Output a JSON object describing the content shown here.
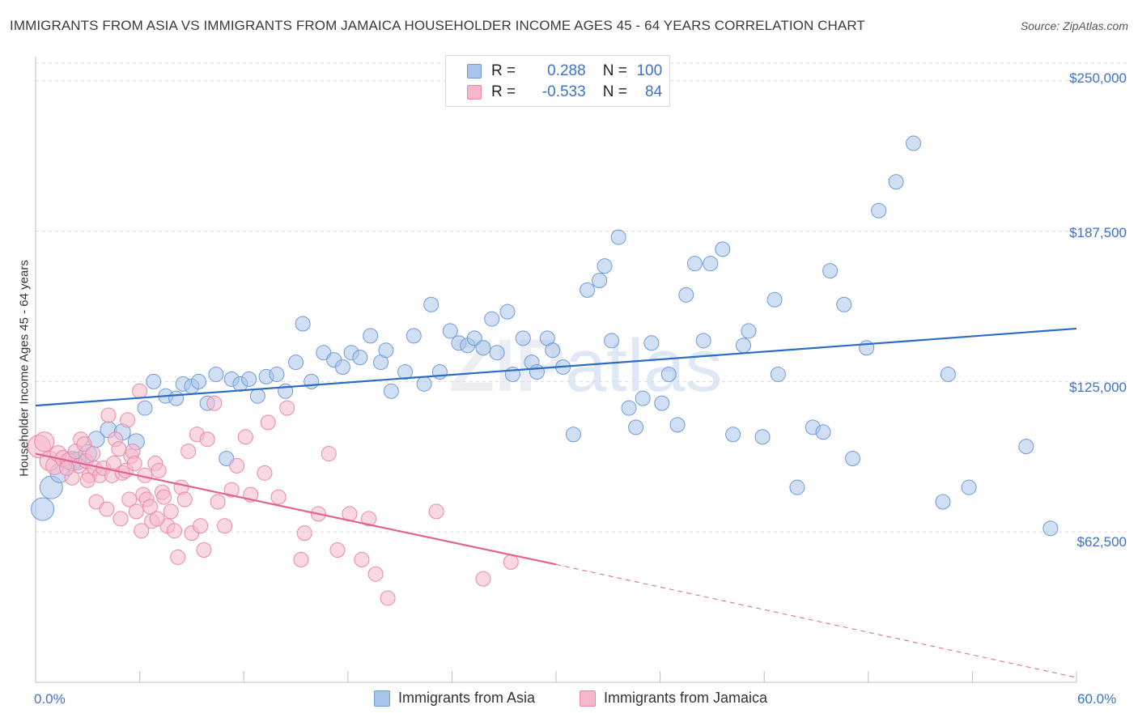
{
  "title": "IMMIGRANTS FROM ASIA VS IMMIGRANTS FROM JAMAICA HOUSEHOLDER INCOME AGES 45 - 64 YEARS CORRELATION CHART",
  "source": "Source: ZipAtlas.com",
  "watermark": {
    "zip": "ZIP",
    "atlas": "atlas"
  },
  "legend": {
    "rows": [
      {
        "r_label": "R =",
        "r_value": "0.288",
        "n_label": "N =",
        "n_value": "100"
      },
      {
        "r_label": "R =",
        "r_value": "-0.533",
        "n_label": "N =",
        "n_value": "84"
      }
    ]
  },
  "colors": {
    "asia_fill": "#a9c4ea",
    "asia_stroke": "#6f9bd8",
    "asia_line": "#2b6cc4",
    "jamaica_fill": "#f5b8cb",
    "jamaica_stroke": "#e889a8",
    "jamaica_line": "#e2638f",
    "tick_text": "#3d73c6",
    "grid": "#dcdcdc"
  },
  "chart_data": {
    "type": "scatter",
    "title": "IMMIGRANTS FROM ASIA VS IMMIGRANTS FROM JAMAICA HOUSEHOLDER INCOME AGES 45 - 64 YEARS CORRELATION CHART",
    "xlabel": "",
    "ylabel": "Householder Income Ages 45 - 64 years",
    "xlim": [
      0,
      60
    ],
    "ylim": [
      0,
      260000
    ],
    "x_tick_labels": [
      "0.0%",
      "60.0%"
    ],
    "y_ticks": [
      62500,
      125000,
      187500,
      250000
    ],
    "y_tick_labels": [
      "$62,500",
      "$125,000",
      "$187,500",
      "$250,000"
    ],
    "grid": true,
    "legend_position": "top-center",
    "series": [
      {
        "name": "Immigrants from Asia",
        "trendline": {
          "x": [
            0,
            60
          ],
          "y": [
            115000,
            147000
          ],
          "dashed_extension": false
        },
        "points": [
          [
            0.4,
            72000,
            14
          ],
          [
            0.9,
            81000,
            14
          ],
          [
            1.4,
            87000,
            12
          ],
          [
            2.1,
            92000,
            12
          ],
          [
            2.4,
            92000,
            11
          ],
          [
            3.0,
            95000,
            11
          ],
          [
            3.5,
            101000,
            10
          ],
          [
            4.2,
            105000,
            10
          ],
          [
            5.0,
            104000,
            10
          ],
          [
            5.8,
            100000,
            10
          ],
          [
            6.3,
            114000,
            9
          ],
          [
            6.8,
            125000,
            9
          ],
          [
            7.5,
            119000,
            9
          ],
          [
            8.1,
            118000,
            9
          ],
          [
            8.5,
            124000,
            9
          ],
          [
            9.0,
            123000,
            9
          ],
          [
            9.4,
            125000,
            9
          ],
          [
            9.9,
            116000,
            9
          ],
          [
            10.4,
            128000,
            9
          ],
          [
            11.0,
            93000,
            9
          ],
          [
            11.3,
            126000,
            9
          ],
          [
            11.8,
            124000,
            9
          ],
          [
            12.3,
            126000,
            9
          ],
          [
            12.8,
            119000,
            9
          ],
          [
            13.3,
            127000,
            9
          ],
          [
            13.9,
            128000,
            9
          ],
          [
            14.4,
            121000,
            9
          ],
          [
            15.0,
            133000,
            9
          ],
          [
            15.4,
            149000,
            9
          ],
          [
            15.9,
            125000,
            9
          ],
          [
            16.6,
            137000,
            9
          ],
          [
            17.2,
            134000,
            9
          ],
          [
            17.7,
            131000,
            9
          ],
          [
            18.2,
            137000,
            9
          ],
          [
            18.7,
            135000,
            9
          ],
          [
            19.3,
            144000,
            9
          ],
          [
            19.9,
            133000,
            9
          ],
          [
            20.2,
            138000,
            9
          ],
          [
            20.5,
            121000,
            9
          ],
          [
            21.3,
            129000,
            9
          ],
          [
            21.8,
            144000,
            9
          ],
          [
            22.4,
            124000,
            9
          ],
          [
            22.8,
            157000,
            9
          ],
          [
            23.3,
            129000,
            9
          ],
          [
            23.9,
            146000,
            9
          ],
          [
            24.4,
            141000,
            9
          ],
          [
            24.9,
            140000,
            9
          ],
          [
            25.3,
            143000,
            9
          ],
          [
            25.8,
            139000,
            9
          ],
          [
            26.3,
            151000,
            9
          ],
          [
            26.6,
            137000,
            9
          ],
          [
            27.2,
            154000,
            9
          ],
          [
            27.5,
            128000,
            9
          ],
          [
            28.1,
            143000,
            9
          ],
          [
            28.6,
            133000,
            9
          ],
          [
            28.9,
            129000,
            9
          ],
          [
            29.5,
            143000,
            9
          ],
          [
            29.8,
            138000,
            9
          ],
          [
            30.4,
            131000,
            9
          ],
          [
            31.0,
            103000,
            9
          ],
          [
            31.8,
            163000,
            9
          ],
          [
            32.5,
            167000,
            9
          ],
          [
            32.8,
            173000,
            9
          ],
          [
            33.2,
            142000,
            9
          ],
          [
            33.6,
            185000,
            9
          ],
          [
            34.2,
            114000,
            9
          ],
          [
            34.6,
            106000,
            9
          ],
          [
            35.0,
            118000,
            9
          ],
          [
            35.5,
            141000,
            9
          ],
          [
            36.1,
            116000,
            9
          ],
          [
            36.5,
            128000,
            9
          ],
          [
            37.0,
            107000,
            9
          ],
          [
            37.5,
            161000,
            9
          ],
          [
            38.0,
            174000,
            9
          ],
          [
            38.5,
            142000,
            9
          ],
          [
            38.9,
            174000,
            9
          ],
          [
            39.6,
            180000,
            9
          ],
          [
            40.2,
            103000,
            9
          ],
          [
            40.8,
            140000,
            9
          ],
          [
            41.1,
            146000,
            9
          ],
          [
            41.9,
            102000,
            9
          ],
          [
            42.6,
            159000,
            9
          ],
          [
            42.8,
            128000,
            9
          ],
          [
            43.9,
            81000,
            9
          ],
          [
            44.8,
            106000,
            9
          ],
          [
            45.4,
            104000,
            9
          ],
          [
            45.8,
            171000,
            9
          ],
          [
            46.6,
            157000,
            9
          ],
          [
            47.1,
            93000,
            9
          ],
          [
            47.9,
            139000,
            9
          ],
          [
            48.6,
            196000,
            9
          ],
          [
            49.6,
            208000,
            9
          ],
          [
            50.6,
            224000,
            9
          ],
          [
            52.3,
            75000,
            9
          ],
          [
            52.6,
            128000,
            9
          ],
          [
            53.8,
            81000,
            9
          ],
          [
            57.1,
            98000,
            9
          ],
          [
            58.5,
            64000,
            9
          ]
        ]
      },
      {
        "name": "Immigrants from Jamaica",
        "trendline": {
          "x": [
            0,
            30
          ],
          "y": [
            95000,
            49000
          ],
          "dashed_extension": {
            "x": [
              30,
              60
            ],
            "y": [
              49000,
              2000
            ]
          }
        },
        "points": [
          [
            0.2,
            98000,
            14
          ],
          [
            0.5,
            100000,
            12
          ],
          [
            0.8,
            92000,
            12
          ],
          [
            1.1,
            90000,
            11
          ],
          [
            1.3,
            95000,
            10
          ],
          [
            1.6,
            93000,
            10
          ],
          [
            1.9,
            92000,
            10
          ],
          [
            2.1,
            85000,
            9
          ],
          [
            2.3,
            96000,
            9
          ],
          [
            2.5,
            90000,
            9
          ],
          [
            2.6,
            101000,
            9
          ],
          [
            2.8,
            99000,
            9
          ],
          [
            2.9,
            92000,
            9
          ],
          [
            3.1,
            86000,
            9
          ],
          [
            3.3,
            95000,
            9
          ],
          [
            3.4,
            89000,
            9
          ],
          [
            3.5,
            75000,
            9
          ],
          [
            3.7,
            86000,
            9
          ],
          [
            3.9,
            89000,
            9
          ],
          [
            4.1,
            72000,
            9
          ],
          [
            4.2,
            111000,
            9
          ],
          [
            4.4,
            86000,
            9
          ],
          [
            4.5,
            91000,
            9
          ],
          [
            4.6,
            101000,
            9
          ],
          [
            4.8,
            97000,
            9
          ],
          [
            4.9,
            68000,
            9
          ],
          [
            5.0,
            87000,
            9
          ],
          [
            5.2,
            88000,
            9
          ],
          [
            5.3,
            109000,
            9
          ],
          [
            5.4,
            76000,
            9
          ],
          [
            5.5,
            94000,
            9
          ],
          [
            5.6,
            96000,
            9
          ],
          [
            5.7,
            91000,
            9
          ],
          [
            5.8,
            71000,
            9
          ],
          [
            6.0,
            121000,
            9
          ],
          [
            6.2,
            78000,
            9
          ],
          [
            6.3,
            86000,
            9
          ],
          [
            6.4,
            76000,
            9
          ],
          [
            6.6,
            73000,
            9
          ],
          [
            6.7,
            67000,
            9
          ],
          [
            6.9,
            91000,
            9
          ],
          [
            7.1,
            88000,
            9
          ],
          [
            7.3,
            79000,
            9
          ],
          [
            7.4,
            77000,
            9
          ],
          [
            7.6,
            65000,
            9
          ],
          [
            7.8,
            71000,
            9
          ],
          [
            8.0,
            63000,
            9
          ],
          [
            8.2,
            52000,
            9
          ],
          [
            8.4,
            81000,
            9
          ],
          [
            8.6,
            76000,
            9
          ],
          [
            8.8,
            96000,
            9
          ],
          [
            9.0,
            62000,
            9
          ],
          [
            9.3,
            103000,
            9
          ],
          [
            9.5,
            65000,
            9
          ],
          [
            9.7,
            55000,
            9
          ],
          [
            9.9,
            101000,
            9
          ],
          [
            10.3,
            116000,
            9
          ],
          [
            10.5,
            75000,
            9
          ],
          [
            10.9,
            65000,
            9
          ],
          [
            11.3,
            80000,
            9
          ],
          [
            11.6,
            90000,
            9
          ],
          [
            12.1,
            102000,
            9
          ],
          [
            12.4,
            78000,
            9
          ],
          [
            13.2,
            87000,
            9
          ],
          [
            13.4,
            108000,
            9
          ],
          [
            14.0,
            77000,
            9
          ],
          [
            14.5,
            114000,
            9
          ],
          [
            15.3,
            51000,
            9
          ],
          [
            15.5,
            62000,
            9
          ],
          [
            16.3,
            70000,
            9
          ],
          [
            16.9,
            95000,
            9
          ],
          [
            17.4,
            55000,
            9
          ],
          [
            18.1,
            70000,
            9
          ],
          [
            18.8,
            51000,
            9
          ],
          [
            19.2,
            68000,
            9
          ],
          [
            19.6,
            45000,
            9
          ],
          [
            20.3,
            35000,
            9
          ],
          [
            23.1,
            71000,
            9
          ],
          [
            25.8,
            43000,
            9
          ],
          [
            27.4,
            50000,
            9
          ],
          [
            3.0,
            84000,
            9
          ],
          [
            1.8,
            89000,
            9
          ],
          [
            6.1,
            63000,
            9
          ],
          [
            7.0,
            68000,
            9
          ]
        ]
      }
    ]
  },
  "bottom_legend": [
    "Immigrants from Asia",
    "Immigrants from Jamaica"
  ]
}
